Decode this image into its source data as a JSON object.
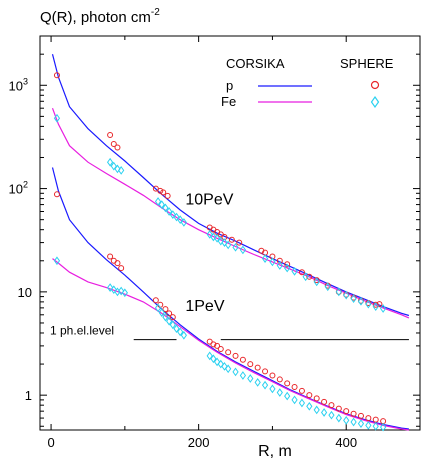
{
  "chart_data": {
    "type": "line",
    "title_main": "Q(R), photon cm",
    "title_exp": "-2",
    "xlabel": "R, m",
    "xlim": [
      -15,
      500
    ],
    "ylim": [
      0.46,
      3000
    ],
    "yscale": "log",
    "x_ticks": [
      {
        "value": 0,
        "label": "0"
      },
      {
        "value": 200,
        "label": "200"
      },
      {
        "value": 400,
        "label": "400"
      }
    ],
    "y_ticks": [
      {
        "value": 1,
        "label": "1",
        "exp": ""
      },
      {
        "value": 10,
        "label": "10",
        "exp": ""
      },
      {
        "value": 100,
        "label": "10",
        "exp": "2"
      },
      {
        "value": 1000,
        "label": "10",
        "exp": "3"
      }
    ],
    "legend": {
      "header_model": "CORSIKA",
      "header_data": "SPHERE",
      "entries": [
        {
          "label": "p",
          "line_color": "#1a1aff",
          "marker": "circle",
          "marker_color": "#e8262a"
        },
        {
          "label": "Fe",
          "line_color": "#e81fe0",
          "marker": "diamond",
          "marker_color": "#2ad1f0"
        }
      ]
    },
    "annotations": [
      {
        "text": "10PeV",
        "x": 182,
        "y": 80
      },
      {
        "text": "1PeV",
        "x": 182,
        "y": 7.5
      }
    ],
    "threshold": {
      "label": "1 ph.el.level",
      "value": 3.45,
      "segments": [
        [
          112,
          170
        ],
        [
          230,
          485
        ]
      ]
    },
    "series": [
      {
        "name": "p",
        "group": "10PeV",
        "kind": "line",
        "color": "#1a1aff",
        "x": [
          2,
          10,
          25,
          50,
          75,
          100,
          125,
          150,
          175,
          200,
          225,
          250,
          275,
          300,
          325,
          350,
          375,
          400,
          425,
          450,
          475,
          485
        ],
        "y": [
          2000,
          1200,
          620,
          380,
          260,
          185,
          128,
          88,
          62,
          46,
          37,
          31,
          25.5,
          21,
          17.5,
          14.5,
          12,
          10,
          8.5,
          7.2,
          6.2,
          5.9
        ]
      },
      {
        "name": "Fe",
        "group": "10PeV",
        "kind": "line",
        "color": "#e81fe0",
        "x": [
          2,
          10,
          25,
          50,
          75,
          100,
          125,
          150,
          175,
          200,
          225,
          250,
          275,
          300,
          325,
          350,
          375,
          400,
          425,
          450,
          475,
          485
        ],
        "y": [
          600,
          420,
          260,
          180,
          140,
          110,
          86,
          65,
          50,
          40,
          33,
          27.5,
          23,
          19.5,
          16.5,
          14,
          11.5,
          9.7,
          8.2,
          7,
          6,
          5.6
        ]
      },
      {
        "name": "p",
        "group": "1PeV",
        "kind": "line",
        "color": "#1a1aff",
        "x": [
          2,
          10,
          25,
          50,
          75,
          100,
          125,
          150,
          175,
          200,
          225,
          250,
          275,
          300,
          325,
          350,
          375,
          400,
          425,
          450,
          475,
          485
        ],
        "y": [
          160,
          95,
          50,
          30,
          20.5,
          14.5,
          10,
          6.8,
          4.8,
          3.5,
          2.65,
          2.1,
          1.7,
          1.38,
          1.12,
          0.93,
          0.78,
          0.66,
          0.58,
          0.52,
          0.48,
          0.47
        ]
      },
      {
        "name": "Fe",
        "group": "1PeV",
        "kind": "line",
        "color": "#e81fe0",
        "x": [
          2,
          10,
          25,
          50,
          75,
          100,
          125,
          150,
          175,
          200,
          225,
          250,
          275,
          300,
          325,
          350,
          375,
          400,
          425,
          450,
          475,
          485
        ],
        "y": [
          21,
          19,
          15.5,
          12.5,
          11,
          9.5,
          8,
          6.2,
          4.6,
          3.4,
          2.6,
          2.05,
          1.65,
          1.35,
          1.1,
          0.92,
          0.77,
          0.65,
          0.57,
          0.51,
          0.47,
          0.46
        ]
      },
      {
        "name": "p",
        "group": "10PeV",
        "kind": "points",
        "marker": "circle",
        "color": "#e8262a",
        "x": [
          8,
          80,
          85,
          90,
          142,
          148,
          152,
          158,
          215,
          220,
          225,
          230,
          235,
          245,
          255,
          285,
          290,
          300,
          310,
          320,
          340,
          350,
          360,
          375,
          390,
          400,
          410,
          420,
          430,
          440,
          445
        ],
        "y": [
          1250,
          330,
          270,
          250,
          100,
          95,
          92,
          85,
          42,
          40,
          38,
          36,
          34,
          32,
          30,
          25,
          24,
          22,
          20,
          18.5,
          15.5,
          14,
          13,
          11.5,
          10,
          9.4,
          8.8,
          8.2,
          7.8,
          7.5,
          7.6
        ]
      },
      {
        "name": "Fe",
        "group": "10PeV",
        "kind": "points",
        "marker": "diamond",
        "color": "#2ad1f0",
        "x": [
          8,
          80,
          85,
          90,
          95,
          145,
          150,
          155,
          160,
          165,
          170,
          175,
          180,
          215,
          220,
          225,
          230,
          235,
          240,
          250,
          260,
          290,
          300,
          310,
          320,
          330,
          345,
          360,
          375,
          390,
          400,
          410,
          420,
          430,
          440,
          450
        ],
        "y": [
          480,
          180,
          165,
          155,
          150,
          75,
          70,
          65,
          60,
          56,
          53,
          50,
          47,
          36,
          34,
          33,
          31,
          30,
          28.5,
          27,
          25.5,
          21,
          19.5,
          18,
          17,
          15.8,
          14,
          12.5,
          11.2,
          10,
          9.3,
          8.6,
          8.1,
          7.6,
          7.2,
          6.9
        ]
      },
      {
        "name": "p",
        "group": "1PeV",
        "kind": "points",
        "marker": "circle",
        "color": "#e8262a",
        "x": [
          8,
          80,
          85,
          90,
          95,
          142,
          148,
          155,
          160,
          165,
          215,
          220,
          225,
          230,
          240,
          250,
          260,
          270,
          280,
          290,
          300,
          310,
          320,
          330,
          340,
          350,
          360,
          370,
          380,
          390,
          400,
          410,
          420,
          430,
          440,
          450
        ],
        "y": [
          88,
          22,
          20,
          19,
          17,
          8.3,
          7.5,
          6.8,
          6.2,
          5.7,
          3.3,
          3.1,
          3,
          2.8,
          2.6,
          2.4,
          2.2,
          2,
          1.85,
          1.7,
          1.55,
          1.42,
          1.3,
          1.2,
          1.1,
          1,
          0.93,
          0.86,
          0.8,
          0.74,
          0.7,
          0.66,
          0.63,
          0.6,
          0.58,
          0.56
        ]
      },
      {
        "name": "Fe",
        "group": "1PeV",
        "kind": "points",
        "marker": "diamond",
        "color": "#2ad1f0",
        "x": [
          8,
          80,
          85,
          90,
          95,
          100,
          145,
          150,
          155,
          160,
          165,
          170,
          175,
          180,
          215,
          220,
          225,
          230,
          235,
          240,
          250,
          260,
          270,
          280,
          290,
          300,
          310,
          320,
          330,
          340,
          350,
          360,
          370,
          380,
          390,
          400,
          410,
          420,
          430,
          440,
          450
        ],
        "y": [
          20,
          11,
          10.5,
          10,
          10.2,
          9.8,
          7,
          6.3,
          5.7,
          5.2,
          4.8,
          4.4,
          4.1,
          3.8,
          2.4,
          2.25,
          2.1,
          2,
          1.9,
          1.8,
          1.68,
          1.55,
          1.45,
          1.33,
          1.25,
          1.15,
          1.06,
          0.98,
          0.9,
          0.84,
          0.78,
          0.72,
          0.68,
          0.64,
          0.6,
          0.57,
          0.55,
          0.53,
          0.51,
          0.5,
          0.49
        ]
      }
    ]
  }
}
